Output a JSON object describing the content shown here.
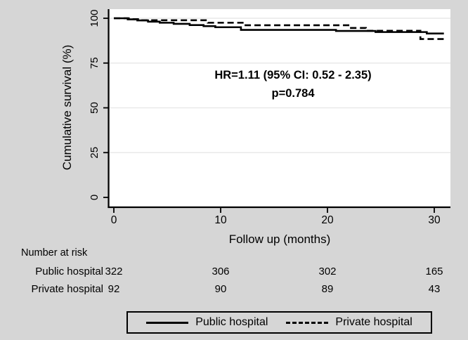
{
  "figure": {
    "background_color": "#d6d6d6",
    "plot_background_color": "#ffffff",
    "grid_color": "#e9e9e9",
    "curve_color": "#000000"
  },
  "chart_data": {
    "type": "line",
    "subtype": "kaplan-meier-step",
    "title": "",
    "xlabel": "Follow up (months)",
    "ylabel": "Cumulative survival (%)",
    "xlim": [
      0,
      31
    ],
    "ylim": [
      0,
      100
    ],
    "x_ticks": [
      0,
      10,
      20,
      30
    ],
    "y_ticks": [
      0,
      25,
      50,
      75,
      100
    ],
    "grid": "horizontal",
    "legend_position": "bottom",
    "annotation": {
      "line1": "HR=1.11 (95% CI: 0.52 - 2.35)",
      "line2": "p=0.784"
    },
    "series": [
      {
        "name": "Public hospital",
        "style": "solid",
        "points": [
          [
            0,
            100
          ],
          [
            1.3,
            99.4
          ],
          [
            2.2,
            98.8
          ],
          [
            3.2,
            98.1
          ],
          [
            4.3,
            97.5
          ],
          [
            5.6,
            96.9
          ],
          [
            7.1,
            96.2
          ],
          [
            8.4,
            95.6
          ],
          [
            9.5,
            95.0
          ],
          [
            11.9,
            93.5
          ],
          [
            20.8,
            92.9
          ],
          [
            24.5,
            92.3
          ],
          [
            29.3,
            91.5
          ],
          [
            30.9,
            91.5
          ]
        ]
      },
      {
        "name": "Private hospital",
        "style": "dashed",
        "points": [
          [
            0,
            100
          ],
          [
            1.4,
            99.5
          ],
          [
            2.4,
            98.9
          ],
          [
            8.8,
            97.5
          ],
          [
            12.2,
            96.1
          ],
          [
            22.2,
            94.6
          ],
          [
            23.6,
            93.0
          ],
          [
            28.7,
            88.4
          ],
          [
            30.9,
            88.4
          ]
        ]
      }
    ]
  },
  "risk_table": {
    "title": "Number at risk",
    "time_points": [
      0,
      10,
      20,
      30
    ],
    "rows": [
      {
        "label": "Public hospital",
        "values": [
          "322",
          "306",
          "302",
          "165"
        ]
      },
      {
        "label": "Private hospital",
        "values": [
          "92",
          "90",
          "89",
          "43"
        ]
      }
    ]
  },
  "legend": {
    "items": [
      {
        "label": "Public hospital",
        "style": "solid"
      },
      {
        "label": "Private hospital",
        "style": "dashed"
      }
    ]
  }
}
